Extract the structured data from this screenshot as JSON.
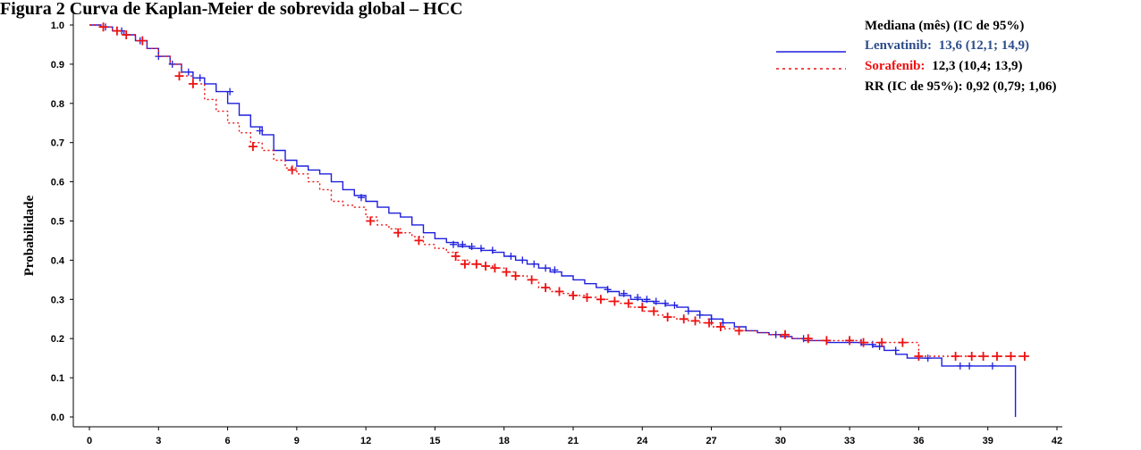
{
  "chart_data": {
    "type": "line",
    "title": "Figura 2 Curva de Kaplan-Meier de sobrevida global – HCC",
    "xlabel": "",
    "ylabel": "Probabilidade",
    "xlim": [
      0,
      42
    ],
    "ylim": [
      0,
      1.0
    ],
    "x_ticks": [
      0,
      3,
      6,
      9,
      12,
      15,
      18,
      21,
      24,
      27,
      30,
      33,
      36,
      39,
      42
    ],
    "y_ticks": [
      "0.0",
      "0.1",
      "0.2",
      "0.3",
      "0.4",
      "0.5",
      "0.6",
      "0.7",
      "0.8",
      "0.9",
      "1.0"
    ],
    "grid": false,
    "legend_position": "top-right",
    "legend": {
      "header": "Mediana (mês) (IC de 95%)",
      "entries": [
        {
          "name": "Lenvatinib:",
          "value": "13,6 (12,1; 14,9)"
        },
        {
          "name": "Sorafenib:",
          "value": "12,3 (10,4; 13,9)"
        }
      ],
      "hazard_ratio": "RR (IC de 95%): 0,92 (0,79; 1,06)"
    },
    "series": [
      {
        "name": "Lenvatinib",
        "color": "#1f1fdd",
        "style": "solid",
        "x": [
          0,
          0.5,
          1,
          1.5,
          2,
          2.5,
          3,
          3.5,
          4,
          4.5,
          5,
          5.5,
          6,
          6.5,
          7,
          7.5,
          8,
          8.5,
          9,
          9.5,
          10,
          10.5,
          11,
          11.5,
          12,
          12.5,
          13,
          13.5,
          14,
          14.5,
          15,
          15.5,
          16,
          16.5,
          17,
          17.5,
          18,
          18.5,
          19,
          19.5,
          20,
          20.5,
          21,
          21.5,
          22,
          22.5,
          23,
          23.5,
          24,
          24.5,
          25,
          25.5,
          26,
          26.5,
          27,
          27.5,
          28,
          28.5,
          29,
          29.5,
          30,
          30.5,
          31,
          31.5,
          32,
          32.5,
          33,
          33.5,
          34,
          34.5,
          35,
          35.5,
          36,
          36.5,
          37,
          37.5,
          38,
          38.5,
          39,
          39.5,
          40,
          40.2
        ],
        "y": [
          1.0,
          0.995,
          0.985,
          0.975,
          0.96,
          0.94,
          0.92,
          0.9,
          0.88,
          0.865,
          0.85,
          0.83,
          0.8,
          0.77,
          0.74,
          0.72,
          0.68,
          0.655,
          0.64,
          0.63,
          0.62,
          0.6,
          0.58,
          0.565,
          0.55,
          0.535,
          0.52,
          0.51,
          0.49,
          0.47,
          0.455,
          0.445,
          0.435,
          0.43,
          0.425,
          0.42,
          0.41,
          0.4,
          0.39,
          0.38,
          0.37,
          0.36,
          0.35,
          0.34,
          0.33,
          0.32,
          0.31,
          0.3,
          0.295,
          0.29,
          0.285,
          0.28,
          0.27,
          0.26,
          0.25,
          0.24,
          0.23,
          0.22,
          0.215,
          0.21,
          0.205,
          0.2,
          0.195,
          0.195,
          0.19,
          0.19,
          0.19,
          0.185,
          0.18,
          0.17,
          0.16,
          0.15,
          0.15,
          0.15,
          0.13,
          0.13,
          0.13,
          0.13,
          0.13,
          0.13,
          0.13,
          0.0
        ],
        "censored_x": [
          0.7,
          1.4,
          2.2,
          3.0,
          3.6,
          4.3,
          4.8,
          6.1,
          7.4,
          11.8,
          15.8,
          16.2,
          16.6,
          17.0,
          17.5,
          18.3,
          18.8,
          19.3,
          19.8,
          20.2,
          22.5,
          23.2,
          23.8,
          24.2,
          24.6,
          25.0,
          25.4,
          26.0,
          26.5,
          27.0,
          27.5,
          29.8,
          31.0,
          32.0,
          33.5,
          34.0,
          34.3,
          35.0,
          36.4,
          37.8,
          38.2,
          39.2
        ],
        "censored_y": [
          0.995,
          0.985,
          0.96,
          0.92,
          0.9,
          0.88,
          0.865,
          0.83,
          0.73,
          0.56,
          0.44,
          0.44,
          0.435,
          0.43,
          0.425,
          0.41,
          0.4,
          0.39,
          0.38,
          0.375,
          0.325,
          0.315,
          0.305,
          0.3,
          0.295,
          0.29,
          0.285,
          0.27,
          0.26,
          0.25,
          0.24,
          0.21,
          0.2,
          0.195,
          0.19,
          0.185,
          0.18,
          0.17,
          0.15,
          0.13,
          0.13,
          0.13
        ]
      },
      {
        "name": "Sorafenib",
        "color": "#ee1111",
        "style": "dotted",
        "x": [
          0,
          0.5,
          1,
          1.5,
          2,
          2.5,
          3,
          3.5,
          4,
          4.5,
          5,
          5.5,
          6,
          6.5,
          7,
          7.5,
          8,
          8.5,
          9,
          9.5,
          10,
          10.5,
          11,
          11.5,
          12,
          12.5,
          13,
          13.5,
          14,
          14.5,
          15,
          15.5,
          16,
          16.5,
          17,
          17.5,
          18,
          18.5,
          19,
          19.5,
          20,
          20.5,
          21,
          21.5,
          22,
          22.5,
          23,
          23.5,
          24,
          24.5,
          25,
          25.5,
          26,
          26.5,
          27,
          27.5,
          28,
          28.5,
          29,
          29.5,
          30,
          30.5,
          31,
          31.5,
          32,
          32.5,
          33,
          33.5,
          34,
          34.5,
          35,
          35.5,
          36,
          36.5,
          37,
          37.5,
          38,
          38.5,
          39,
          39.5,
          40,
          40.5
        ],
        "y": [
          1.0,
          0.995,
          0.985,
          0.975,
          0.96,
          0.94,
          0.92,
          0.9,
          0.87,
          0.85,
          0.81,
          0.78,
          0.75,
          0.725,
          0.7,
          0.68,
          0.655,
          0.635,
          0.62,
          0.6,
          0.58,
          0.55,
          0.54,
          0.535,
          0.51,
          0.49,
          0.48,
          0.47,
          0.46,
          0.44,
          0.43,
          0.42,
          0.4,
          0.39,
          0.385,
          0.38,
          0.37,
          0.36,
          0.35,
          0.33,
          0.32,
          0.315,
          0.31,
          0.305,
          0.3,
          0.295,
          0.29,
          0.28,
          0.27,
          0.26,
          0.255,
          0.25,
          0.245,
          0.24,
          0.23,
          0.225,
          0.22,
          0.22,
          0.215,
          0.21,
          0.205,
          0.2,
          0.195,
          0.195,
          0.195,
          0.195,
          0.195,
          0.19,
          0.19,
          0.19,
          0.19,
          0.19,
          0.155,
          0.155,
          0.155,
          0.155,
          0.155,
          0.155,
          0.155,
          0.155,
          0.155,
          0.155
        ],
        "censored_x": [
          0.6,
          1.2,
          1.6,
          2.3,
          3.9,
          4.5,
          7.1,
          8.8,
          12.2,
          13.4,
          14.3,
          15.9,
          16.3,
          16.8,
          17.2,
          17.6,
          18.1,
          18.5,
          19.2,
          19.8,
          20.4,
          21.0,
          21.6,
          22.2,
          22.8,
          23.4,
          24.0,
          24.5,
          25.1,
          25.8,
          26.3,
          26.9,
          27.4,
          28.2,
          30.2,
          31.2,
          32.0,
          33.0,
          33.6,
          34.4,
          35.3,
          36.0,
          37.6,
          38.3,
          38.8,
          39.4,
          40.0,
          40.6
        ],
        "censored_y": [
          0.995,
          0.985,
          0.975,
          0.96,
          0.87,
          0.85,
          0.69,
          0.63,
          0.5,
          0.47,
          0.45,
          0.41,
          0.39,
          0.39,
          0.385,
          0.38,
          0.37,
          0.36,
          0.35,
          0.33,
          0.32,
          0.31,
          0.305,
          0.3,
          0.295,
          0.29,
          0.28,
          0.27,
          0.255,
          0.25,
          0.245,
          0.24,
          0.23,
          0.22,
          0.21,
          0.2,
          0.195,
          0.195,
          0.19,
          0.19,
          0.19,
          0.155,
          0.155,
          0.155,
          0.155,
          0.155,
          0.155,
          0.155
        ]
      }
    ]
  }
}
